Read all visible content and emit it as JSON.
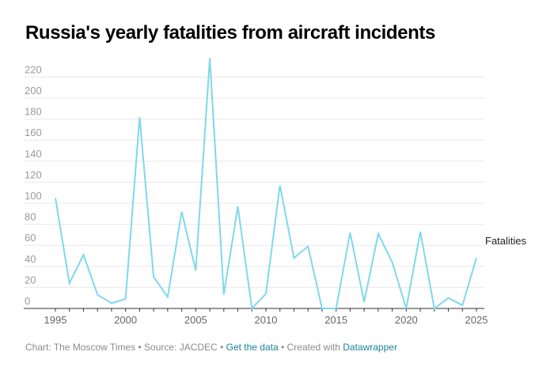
{
  "title": "Russia's yearly fatalities from aircraft incidents",
  "footer": {
    "chart_credit": "Chart: The Moscow Times",
    "separator": " • ",
    "source": "Source: JACDEC",
    "get_data_link": "Get the data",
    "created_with": "Created with",
    "datawrapper_link": "Datawrapper"
  },
  "colors": {
    "line": "#7fd8ee",
    "grid": "#e8e8e8",
    "axis": "#333333",
    "link": "#1d81a2"
  },
  "chart_data": {
    "type": "line",
    "title": "Russia's yearly fatalities from aircraft incidents",
    "xlabel": "",
    "ylabel": "",
    "xlim": [
      1995,
      2025
    ],
    "ylim": [
      0,
      220
    ],
    "y_ticks": [
      0,
      20,
      40,
      60,
      80,
      100,
      120,
      140,
      160,
      180,
      200,
      220
    ],
    "x_ticks": [
      1995,
      2000,
      2005,
      2010,
      2015,
      2020,
      2025
    ],
    "grid": "horizontal",
    "series": [
      {
        "name": "Fatalities",
        "x": [
          1995,
          1996,
          1997,
          1998,
          1999,
          2000,
          2001,
          2002,
          2003,
          2004,
          2005,
          2006,
          2007,
          2008,
          2009,
          2010,
          2011,
          2012,
          2013,
          2014,
          2015,
          2016,
          2017,
          2018,
          2019,
          2020,
          2021,
          2022,
          2023,
          2024,
          2025
        ],
        "values": [
          105,
          24,
          51,
          13,
          5,
          9,
          182,
          30,
          11,
          92,
          36,
          238,
          13,
          97,
          0,
          14,
          117,
          48,
          59,
          0,
          0,
          72,
          6,
          71,
          44,
          0,
          73,
          0,
          10,
          3,
          48
        ]
      }
    ]
  }
}
